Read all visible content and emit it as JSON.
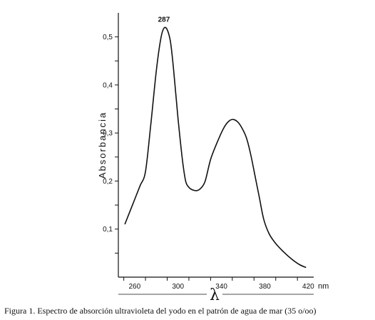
{
  "caption": "Figura 1.  Espectro de absorción ultravioleta del yodo  en el patrón de agua de mar (35 o/oo)",
  "chart_data": {
    "type": "line",
    "title": "",
    "xlabel": "λ",
    "x_unit": "nm",
    "ylabel": "Absorbancia",
    "xlim": [
      245,
      425
    ],
    "ylim": [
      0,
      0.55
    ],
    "x_ticks": [
      260,
      300,
      340,
      380,
      420
    ],
    "x_tick_labels": [
      "260",
      "300",
      "340",
      "380",
      "420"
    ],
    "y_ticks": [
      0.1,
      0.2,
      0.3,
      0.4,
      0.5
    ],
    "y_tick_labels": [
      "0,1",
      "0,2",
      "0,3",
      "0,4",
      "0,5"
    ],
    "grid": false,
    "annotations": [
      {
        "text": "287",
        "x": 287,
        "y": 0.518
      }
    ],
    "series": [
      {
        "x": [
          251,
          258,
          265,
          270,
          275,
          280,
          284,
          287,
          290,
          293,
          296,
          300,
          304,
          307,
          310,
          313,
          317,
          321,
          325,
          330,
          336,
          342,
          347,
          351,
          355,
          359,
          363,
          367,
          371,
          375,
          379,
          384,
          390,
          397,
          405,
          412,
          418
        ],
        "y": [
          0.11,
          0.15,
          0.19,
          0.22,
          0.32,
          0.43,
          0.495,
          0.518,
          0.515,
          0.49,
          0.43,
          0.33,
          0.245,
          0.2,
          0.187,
          0.182,
          0.18,
          0.185,
          0.2,
          0.245,
          0.28,
          0.31,
          0.325,
          0.328,
          0.323,
          0.31,
          0.29,
          0.255,
          0.21,
          0.165,
          0.12,
          0.09,
          0.07,
          0.053,
          0.037,
          0.026,
          0.02
        ]
      }
    ]
  }
}
